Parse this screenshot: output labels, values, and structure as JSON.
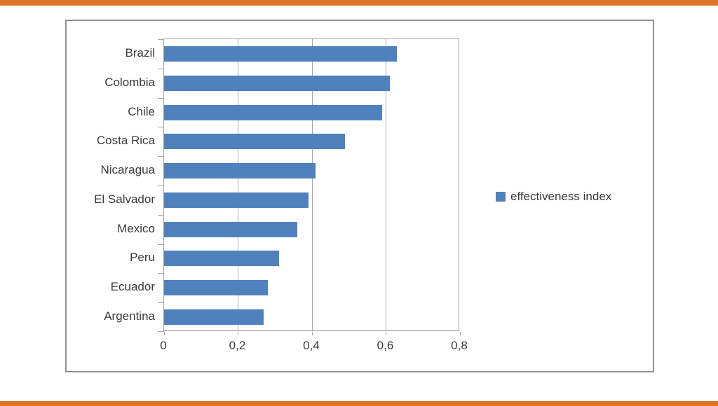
{
  "page": {
    "accent_color": "#dd7428",
    "frame_border_color": "#8f8f8f",
    "grid_color": "#a6a6a6",
    "text_color": "#3a3a3a"
  },
  "chart_data": {
    "type": "bar",
    "orientation": "horizontal",
    "title": "",
    "categories": [
      "Brazil",
      "Colombia",
      "Chile",
      "Costa Rica",
      "Nicaragua",
      "El Salvador",
      "Mexico",
      "Peru",
      "Ecuador",
      "Argentina"
    ],
    "series": [
      {
        "name": "effectiveness index",
        "values": [
          0.63,
          0.61,
          0.59,
          0.49,
          0.41,
          0.39,
          0.36,
          0.31,
          0.28,
          0.27
        ]
      }
    ],
    "xlim": [
      0,
      0.8
    ],
    "xticks": [
      0,
      0.2,
      0.4,
      0.6,
      0.8
    ],
    "xtick_labels": [
      "0",
      "0,2",
      "0,4",
      "0,6",
      "0,8"
    ],
    "decimal_separator": ",",
    "grid": true,
    "bar_color": "#4f81bd",
    "legend": {
      "position": "right",
      "entries": [
        "effectiveness index"
      ]
    }
  }
}
